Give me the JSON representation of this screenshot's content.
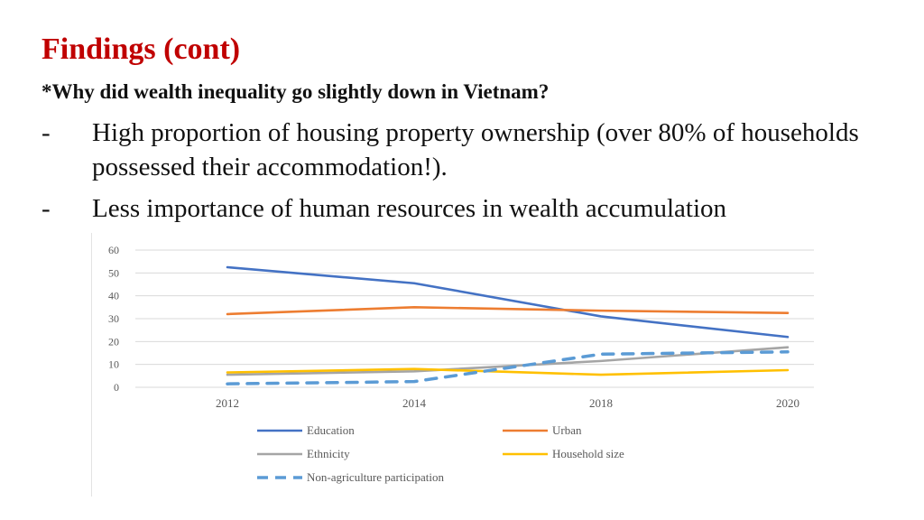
{
  "slide": {
    "title": "Findings (cont)",
    "subtitle": "*Why did wealth inequality go slightly down in Vietnam?",
    "bullets": [
      {
        "marker": "-",
        "text": "High proportion of housing property ownership (over 80% of households possessed their accommodation!)."
      },
      {
        "marker": "-",
        "text": "Less importance of human resources in wealth accumulation"
      }
    ]
  },
  "chart_data": {
    "type": "line",
    "title": "",
    "xlabel": "",
    "ylabel": "",
    "categories": [
      "2012",
      "2014",
      "2018",
      "2020"
    ],
    "ylim": [
      0,
      60
    ],
    "yticks": [
      0,
      10,
      20,
      30,
      40,
      50,
      60
    ],
    "grid": true,
    "legend_position": "bottom",
    "series": [
      {
        "name": "Education",
        "values": [
          52.5,
          45.5,
          31,
          22
        ],
        "color": "#4472C4",
        "dash": false
      },
      {
        "name": "Urban",
        "values": [
          32,
          35,
          33.5,
          32.5
        ],
        "color": "#ED7D31",
        "dash": false
      },
      {
        "name": "Ethnicity",
        "values": [
          5.5,
          7,
          11.5,
          17.5
        ],
        "color": "#A5A5A5",
        "dash": false
      },
      {
        "name": "Household size",
        "values": [
          6.5,
          8,
          5.5,
          7.5
        ],
        "color": "#FFC000",
        "dash": false
      },
      {
        "name": "Non-agriculture participation",
        "values": [
          1.5,
          2.5,
          14.5,
          15.5
        ],
        "color": "#5B9BD5",
        "dash": true
      }
    ]
  }
}
